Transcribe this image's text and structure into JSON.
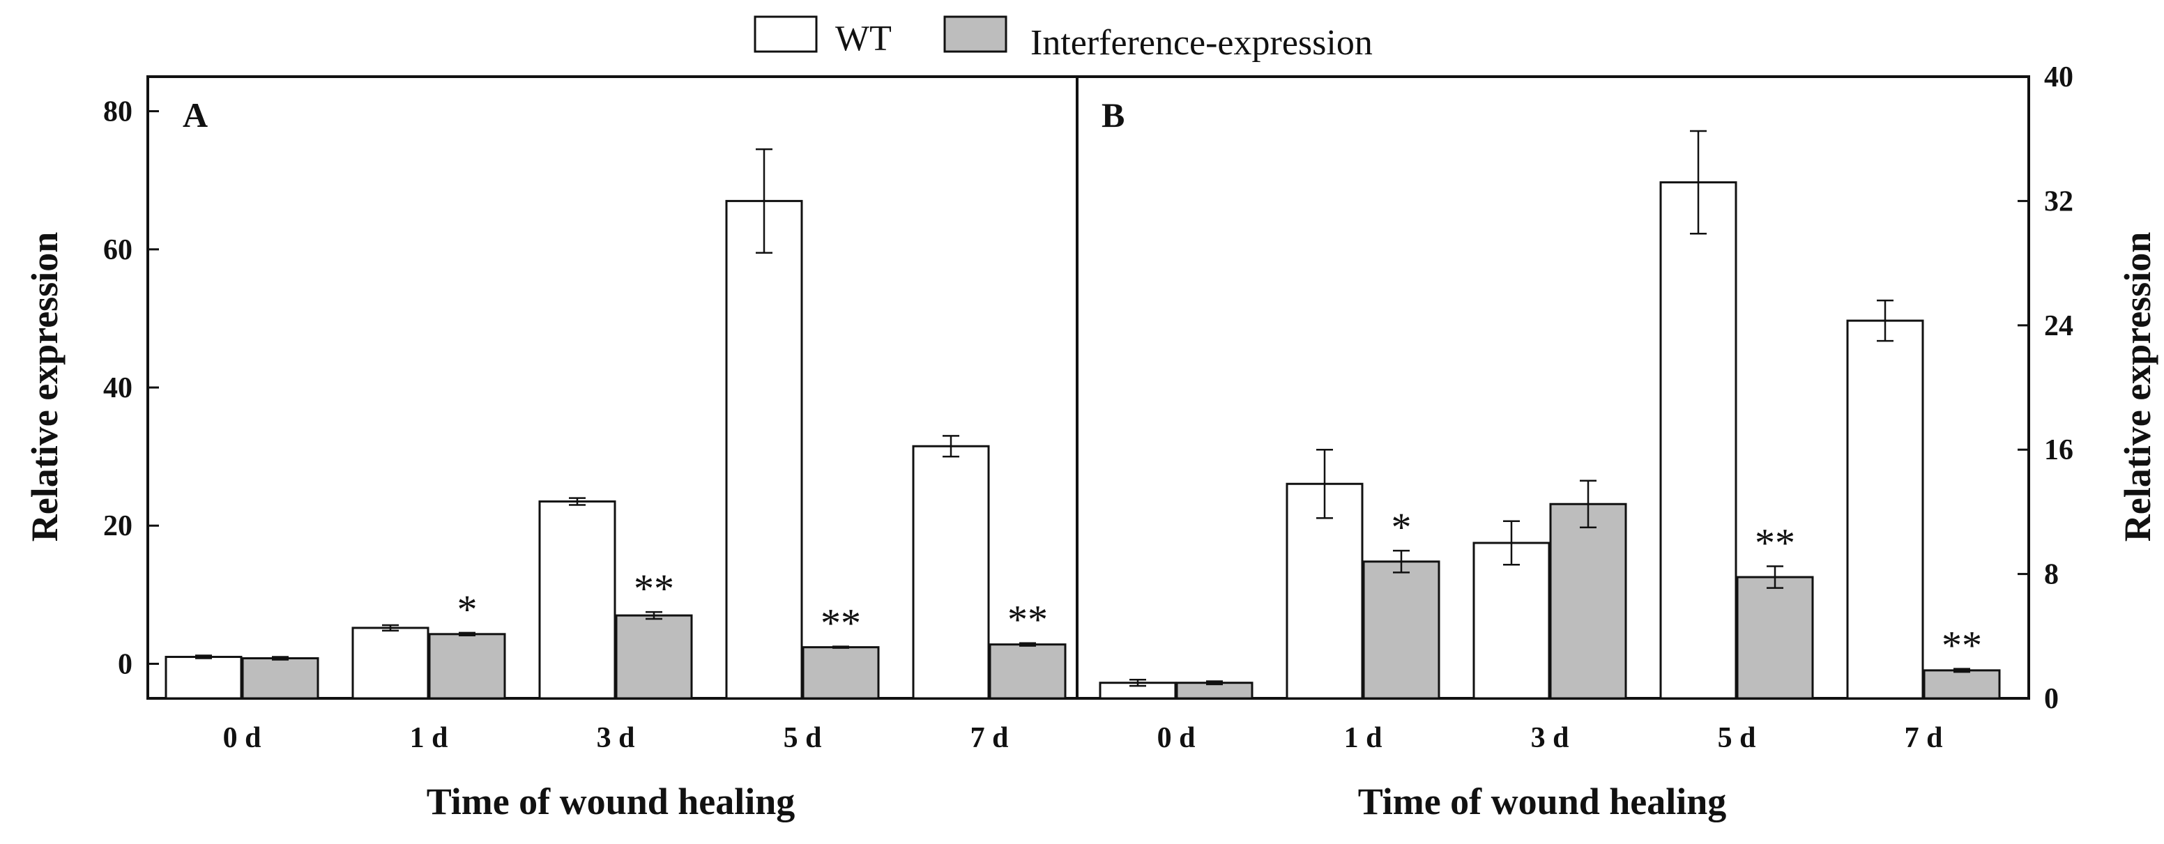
{
  "legend": {
    "series": [
      {
        "name": "WT",
        "fill": "#ffffff"
      },
      {
        "name": "Interference-expression",
        "fill": "#bdbdbd"
      }
    ]
  },
  "colors": {
    "wt": "#ffffff",
    "interference": "#bdbdbd",
    "stroke": "#111111"
  },
  "chart_data": [
    {
      "type": "bar",
      "panel": "A",
      "categories": [
        "0 d",
        "1 d",
        "3 d",
        "5 d",
        "7 d"
      ],
      "series": [
        {
          "name": "WT",
          "values": [
            1.0,
            5.2,
            23.5,
            67.0,
            31.5
          ],
          "errors": [
            0.2,
            0.4,
            0.5,
            7.5,
            1.5
          ]
        },
        {
          "name": "Interference-expression",
          "values": [
            0.8,
            4.3,
            7.0,
            2.4,
            2.8
          ],
          "errors": [
            0.2,
            0.2,
            0.5,
            0.1,
            0.2
          ]
        }
      ],
      "significance": [
        "",
        "*",
        "**",
        "**",
        "**"
      ],
      "xlabel": "Time of wound healing",
      "ylabel": "Relative expression",
      "ylim": [
        -5,
        85
      ],
      "yticks": [
        0,
        20,
        40,
        60,
        80
      ],
      "y_axis_side": "left"
    },
    {
      "type": "bar",
      "panel": "B",
      "categories": [
        "0 d",
        "1 d",
        "3 d",
        "5 d",
        "7 d"
      ],
      "series": [
        {
          "name": "WT",
          "values": [
            1.0,
            13.8,
            10.0,
            33.2,
            24.3
          ],
          "errors": [
            0.2,
            2.2,
            1.4,
            3.3,
            1.3
          ]
        },
        {
          "name": "Interference-expression",
          "values": [
            1.0,
            8.8,
            12.5,
            7.8,
            1.8
          ],
          "errors": [
            0.1,
            0.7,
            1.5,
            0.7,
            0.1
          ]
        }
      ],
      "significance": [
        "",
        "*",
        "",
        "**",
        "**"
      ],
      "xlabel": "Time of wound healing",
      "ylabel": "Relative expression",
      "ylim": [
        0,
        40
      ],
      "yticks": [
        0,
        8,
        16,
        24,
        32,
        40
      ],
      "y_axis_side": "right"
    }
  ]
}
